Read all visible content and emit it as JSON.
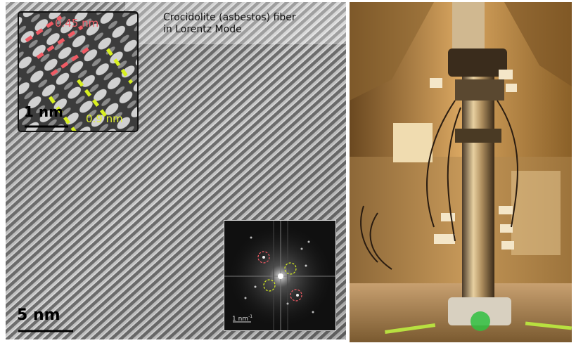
{
  "left_panel": {
    "caption_line1": "Crocidolite (asbestos) fiber",
    "caption_line2": "in Lorentz Mode",
    "main_scale_label": "5 nm",
    "inset_lattice": {
      "spacing_red_label": "0.45 nm",
      "spacing_yellow_label": "0.9 nm",
      "scale_label": "1 nm"
    },
    "inset_fft": {
      "scale_label": "1 nm",
      "scale_unit_power": "-1"
    }
  },
  "colors": {
    "red_marker": "#f05a64",
    "yellow_marker": "#d8f020",
    "photo_tint": "#c89040"
  },
  "right_panel": {
    "subject": "electron-microscope-column-photo"
  }
}
